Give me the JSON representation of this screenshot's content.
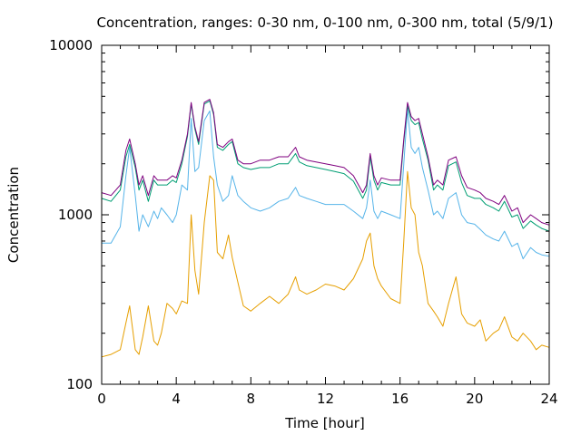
{
  "chart_data": {
    "type": "line",
    "title": "Concentration, ranges: 0-30 nm, 0-100 nm, 0-300 nm, total (5/9/1)",
    "xlabel": "Time [hour]",
    "ylabel": "Concentration",
    "xlim": [
      0,
      24
    ],
    "ylim": [
      100,
      10000
    ],
    "yscale": "log",
    "grid": false,
    "legend": "none",
    "xticks": [
      0,
      4,
      8,
      12,
      16,
      20,
      24
    ],
    "xtick_labels": [
      "0",
      "4",
      "8",
      "12",
      "16",
      "20",
      "24"
    ],
    "yticks": [
      100,
      1000,
      10000
    ],
    "ytick_labels": [
      "100",
      "1000",
      "10000"
    ],
    "x": [
      0,
      0.5,
      1.0,
      1.3,
      1.5,
      1.8,
      2.0,
      2.2,
      2.5,
      2.8,
      3.0,
      3.2,
      3.5,
      3.8,
      4.0,
      4.3,
      4.6,
      4.8,
      5.0,
      5.2,
      5.5,
      5.8,
      6.0,
      6.2,
      6.5,
      6.8,
      7.0,
      7.3,
      7.6,
      8.0,
      8.5,
      9.0,
      9.5,
      10.0,
      10.4,
      10.6,
      11.0,
      11.5,
      12.0,
      12.5,
      13.0,
      13.5,
      14.0,
      14.2,
      14.4,
      14.6,
      14.8,
      15.0,
      15.5,
      16.0,
      16.2,
      16.4,
      16.6,
      16.8,
      17.0,
      17.2,
      17.5,
      17.8,
      18.0,
      18.3,
      18.6,
      19.0,
      19.3,
      19.6,
      20.0,
      20.3,
      20.6,
      21.0,
      21.3,
      21.6,
      22.0,
      22.3,
      22.6,
      23.0,
      23.3,
      23.6,
      24.0
    ],
    "series": [
      {
        "color": "#7f007f",
        "values": [
          1350,
          1300,
          1500,
          2400,
          2800,
          2000,
          1500,
          1700,
          1300,
          1700,
          1600,
          1600,
          1600,
          1700,
          1650,
          2100,
          3000,
          4600,
          3300,
          2700,
          4600,
          4800,
          4000,
          2600,
          2500,
          2700,
          2800,
          2100,
          2000,
          2000,
          2100,
          2100,
          2200,
          2200,
          2500,
          2200,
          2100,
          2050,
          2000,
          1950,
          1900,
          1700,
          1350,
          1500,
          2300,
          1700,
          1500,
          1650,
          1600,
          1600,
          2800,
          4600,
          3800,
          3600,
          3700,
          3000,
          2200,
          1500,
          1600,
          1500,
          2100,
          2200,
          1700,
          1450,
          1400,
          1350,
          1250,
          1200,
          1150,
          1300,
          1050,
          1100,
          900,
          1000,
          950,
          900,
          870
        ]
      },
      {
        "color": "#009e73",
        "values": [
          1250,
          1200,
          1400,
          2200,
          2600,
          1900,
          1400,
          1600,
          1200,
          1600,
          1500,
          1500,
          1500,
          1600,
          1550,
          2000,
          2900,
          4500,
          3200,
          2600,
          4500,
          4700,
          3900,
          2500,
          2400,
          2600,
          2700,
          2000,
          1900,
          1850,
          1900,
          1900,
          2000,
          2000,
          2300,
          2050,
          1950,
          1900,
          1850,
          1800,
          1750,
          1580,
          1250,
          1400,
          2200,
          1600,
          1400,
          1550,
          1500,
          1500,
          2700,
          4400,
          3600,
          3400,
          3500,
          2800,
          2100,
          1400,
          1500,
          1400,
          1950,
          2050,
          1550,
          1300,
          1250,
          1250,
          1150,
          1100,
          1050,
          1200,
          970,
          1000,
          830,
          920,
          870,
          830,
          800
        ]
      },
      {
        "color": "#56b4e9",
        "values": [
          680,
          680,
          850,
          1700,
          2500,
          1300,
          800,
          1000,
          850,
          1050,
          950,
          1100,
          1000,
          900,
          1000,
          1500,
          1400,
          3700,
          1800,
          1900,
          3600,
          4100,
          2200,
          1500,
          1200,
          1300,
          1700,
          1300,
          1200,
          1100,
          1050,
          1100,
          1200,
          1250,
          1450,
          1300,
          1250,
          1200,
          1150,
          1150,
          1150,
          1050,
          950,
          1100,
          1600,
          1050,
          950,
          1050,
          1000,
          950,
          2000,
          4200,
          2500,
          2300,
          2500,
          1900,
          1400,
          1000,
          1050,
          950,
          1250,
          1350,
          1000,
          900,
          880,
          820,
          760,
          720,
          700,
          800,
          650,
          680,
          550,
          640,
          600,
          580,
          570
        ]
      },
      {
        "color": "#e69f00",
        "values": [
          145,
          150,
          160,
          230,
          290,
          160,
          150,
          190,
          290,
          180,
          170,
          200,
          300,
          280,
          260,
          310,
          300,
          1000,
          470,
          340,
          900,
          1700,
          1600,
          600,
          550,
          760,
          560,
          400,
          290,
          270,
          300,
          330,
          300,
          340,
          430,
          360,
          340,
          360,
          390,
          380,
          360,
          420,
          550,
          700,
          780,
          500,
          420,
          380,
          320,
          300,
          700,
          1800,
          1100,
          1000,
          600,
          500,
          300,
          270,
          250,
          220,
          300,
          430,
          260,
          230,
          220,
          240,
          180,
          200,
          210,
          250,
          190,
          180,
          200,
          180,
          160,
          170,
          165
        ]
      }
    ]
  }
}
